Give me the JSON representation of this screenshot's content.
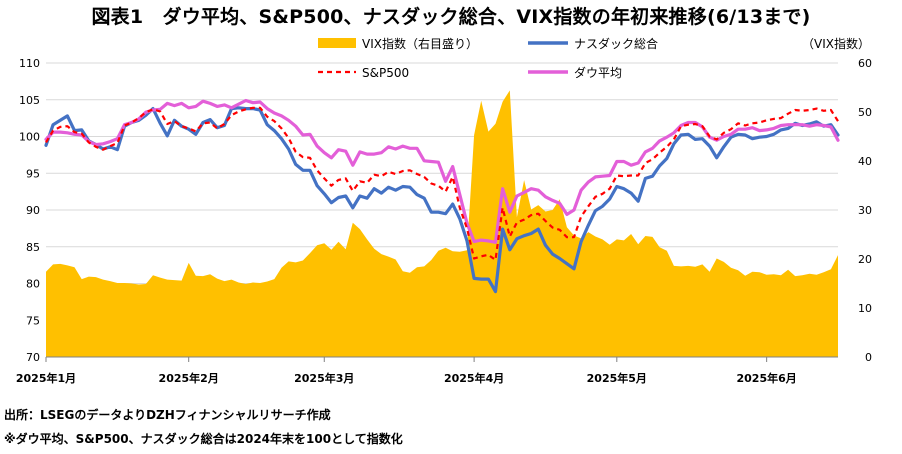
{
  "title": "図表1　ダウ平均、S&P500、ナスダック総合、VIX指数の年初来推移(6/13まで)",
  "notes": {
    "source": "出所：LSEGのデータよりDZHフィナンシャルリサーチ作成",
    "remark": "※ダウ平均、S&P500、ナスダック総合は2024年末を100として指数化"
  },
  "chart_data": {
    "type": "line",
    "right_axis_unit": "（VIX指数）",
    "y_left": {
      "min": 70,
      "max": 110,
      "step": 5,
      "ticks": [
        "70",
        "75",
        "80",
        "85",
        "90",
        "95",
        "100",
        "105",
        "110"
      ]
    },
    "y_right": {
      "min": 0,
      "max": 60,
      "step": 10,
      "ticks": [
        "0",
        "10",
        "20",
        "30",
        "40",
        "50",
        "60"
      ]
    },
    "x": {
      "index_range": [
        0,
        111
      ],
      "ticks": [
        {
          "index": 0,
          "label": "2025年1月"
        },
        {
          "index": 20,
          "label": "2025年2月"
        },
        {
          "index": 39,
          "label": "2025年3月"
        },
        {
          "index": 60,
          "label": "2025年4月"
        },
        {
          "index": 80,
          "label": "2025年5月"
        },
        {
          "index": 101,
          "label": "2025年6月"
        }
      ]
    },
    "colors": {
      "vix": "#ffc000",
      "nasdaq": "#4472c4",
      "sp500": "#ff0000",
      "dow": "#e35fd8"
    },
    "legend": {
      "vix": "VIX指数（右目盛り）",
      "nasdaq": "ナスダック総合",
      "sp500": "S&P500",
      "dow": "ダウ平均"
    },
    "series": [
      {
        "key": "vix",
        "axis": "right",
        "values": [
          17.4,
          18.9,
          19.0,
          18.7,
          18.3,
          15.9,
          16.4,
          16.3,
          15.8,
          15.5,
          15.1,
          15.1,
          15.0,
          14.8,
          14.9,
          16.7,
          16.2,
          15.8,
          15.7,
          15.6,
          19.2,
          16.6,
          16.5,
          16.9,
          16.0,
          15.5,
          15.8,
          15.2,
          14.9,
          15.2,
          15.1,
          15.4,
          15.9,
          18.2,
          19.5,
          19.3,
          19.7,
          21.2,
          22.8,
          23.2,
          21.9,
          23.5,
          22.0,
          27.4,
          26.1,
          24.0,
          22.1,
          21.0,
          20.5,
          19.9,
          17.5,
          17.2,
          18.3,
          18.5,
          19.8,
          21.7,
          22.3,
          21.6,
          21.5,
          21.8,
          45.3,
          52.3,
          46.0,
          47.6,
          52.1,
          54.4,
          28.5,
          36.1,
          30.1,
          31.0,
          29.7,
          30.0,
          32.2,
          26.5,
          24.8,
          24.2,
          25.5,
          24.6,
          24.0,
          22.9,
          24.0,
          23.8,
          25.1,
          23.0,
          24.7,
          24.5,
          22.4,
          21.7,
          18.6,
          18.5,
          18.6,
          18.4,
          18.9,
          17.4,
          20.1,
          19.4,
          18.2,
          17.7,
          16.6,
          17.4,
          17.3,
          16.8,
          16.9,
          16.7,
          17.8,
          16.5,
          16.7,
          17.0,
          16.8,
          17.3,
          17.9,
          20.8
        ]
      },
      {
        "key": "nasdaq",
        "axis": "left",
        "values": [
          98.8,
          101.6,
          102.2,
          102.8,
          100.8,
          100.9,
          99.4,
          98.9,
          98.3,
          98.6,
          98.2,
          101.4,
          101.9,
          102.2,
          102.9,
          103.8,
          101.8,
          100.1,
          102.2,
          101.4,
          101.0,
          100.3,
          101.9,
          102.3,
          101.2,
          101.5,
          103.8,
          103.9,
          103.8,
          103.8,
          103.6,
          101.6,
          100.8,
          99.7,
          98.3,
          96.2,
          95.4,
          95.4,
          93.3,
          92.2,
          91.0,
          91.7,
          91.9,
          90.3,
          91.9,
          91.6,
          92.9,
          92.3,
          93.1,
          92.7,
          93.2,
          93.1,
          92.1,
          91.6,
          89.7,
          89.7,
          89.5,
          90.8,
          88.8,
          85.8,
          80.7,
          80.6,
          80.6,
          78.9,
          87.4,
          84.6,
          86.1,
          86.5,
          86.8,
          87.4,
          85.2,
          84.0,
          83.4,
          82.7,
          82.0,
          85.7,
          87.9,
          89.9,
          90.5,
          91.5,
          93.2,
          92.9,
          92.3,
          91.2,
          94.3,
          94.6,
          96.0,
          97.0,
          99.0,
          100.2,
          100.3,
          99.6,
          99.7,
          98.7,
          97.1,
          98.6,
          99.9,
          100.3,
          100.2,
          99.7,
          99.9,
          100.0,
          100.3,
          100.9,
          101.1,
          101.8,
          101.5,
          101.7,
          102.0,
          101.4,
          101.6,
          100.2
        ]
      },
      {
        "key": "sp500",
        "axis": "left",
        "values": [
          99.2,
          100.8,
          101.3,
          101.4,
          100.6,
          100.4,
          99.2,
          98.6,
          98.2,
          98.7,
          99.1,
          101.5,
          101.9,
          102.5,
          103.3,
          103.7,
          103.4,
          101.7,
          102.1,
          101.4,
          101.1,
          100.7,
          101.8,
          101.9,
          101.1,
          101.7,
          102.9,
          103.4,
          103.7,
          103.9,
          103.9,
          102.7,
          102.1,
          101.1,
          99.8,
          97.9,
          97.2,
          97.1,
          95.4,
          94.3,
          93.3,
          94.1,
          94.3,
          92.6,
          93.9,
          93.7,
          94.8,
          94.6,
          95.2,
          94.9,
          95.3,
          95.4,
          94.9,
          94.5,
          93.6,
          93.3,
          92.5,
          94.5,
          90.3,
          87.5,
          83.4,
          83.7,
          83.9,
          83.2,
          90.3,
          86.4,
          88.3,
          88.7,
          89.3,
          89.5,
          88.5,
          87.6,
          87.3,
          86.3,
          86.3,
          89.1,
          90.5,
          91.8,
          92.2,
          92.9,
          94.7,
          94.6,
          94.7,
          94.7,
          96.4,
          96.9,
          97.8,
          98.6,
          99.6,
          101.4,
          101.6,
          101.7,
          101.4,
          100.0,
          99.6,
          100.5,
          101.0,
          101.8,
          101.5,
          101.8,
          101.9,
          102.2,
          102.4,
          102.5,
          103.1,
          103.6,
          103.5,
          103.6,
          103.8,
          103.5,
          103.6,
          102.1
        ]
      },
      {
        "key": "dow",
        "axis": "left",
        "values": [
          99.6,
          100.6,
          100.6,
          100.5,
          100.3,
          100.2,
          99.3,
          98.9,
          99.0,
          99.3,
          99.7,
          101.6,
          101.9,
          102.4,
          103.3,
          103.6,
          103.7,
          104.5,
          104.2,
          104.5,
          103.9,
          104.1,
          104.8,
          104.5,
          104.1,
          104.3,
          103.9,
          104.4,
          104.9,
          104.6,
          104.7,
          103.8,
          103.2,
          102.8,
          102.2,
          101.4,
          100.2,
          100.3,
          98.7,
          97.8,
          97.1,
          98.2,
          98.0,
          96.1,
          97.9,
          97.6,
          97.6,
          97.8,
          98.6,
          98.3,
          98.7,
          98.4,
          98.4,
          96.7,
          96.6,
          96.5,
          93.9,
          95.9,
          92.1,
          88.2,
          85.7,
          85.9,
          85.8,
          85.6,
          92.9,
          89.7,
          91.9,
          92.4,
          92.9,
          92.7,
          91.8,
          91.3,
          90.9,
          89.4,
          90.0,
          92.7,
          93.8,
          94.5,
          94.6,
          94.7,
          96.6,
          96.6,
          96.1,
          96.4,
          97.9,
          98.4,
          99.4,
          99.9,
          100.5,
          101.5,
          101.9,
          101.9,
          101.3,
          99.9,
          99.5,
          100.0,
          100.3,
          101.0,
          101.0,
          101.2,
          100.8,
          100.9,
          101.1,
          101.5,
          101.6,
          101.6,
          101.6,
          101.4,
          101.6,
          101.5,
          101.3,
          99.5
        ]
      }
    ]
  }
}
